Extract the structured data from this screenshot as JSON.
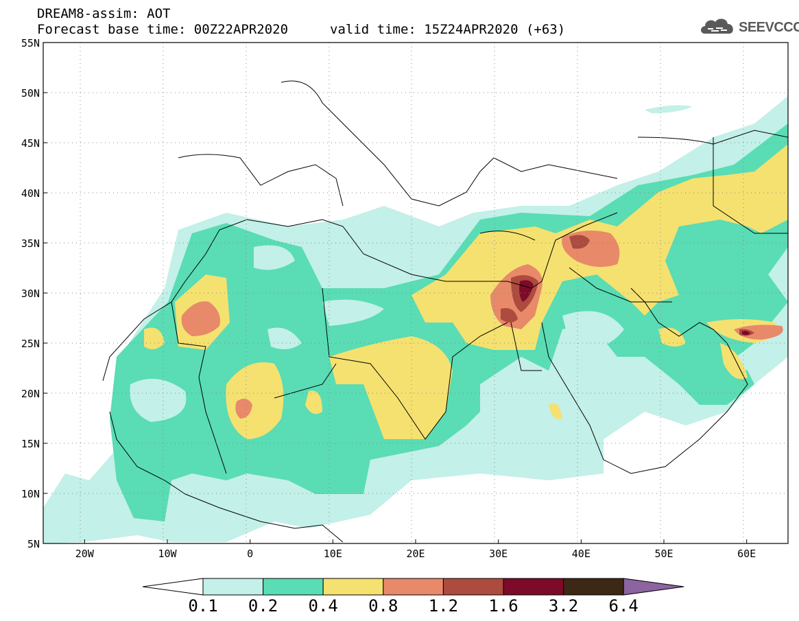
{
  "title": {
    "line1": "DREAM8-assim: AOT",
    "base_time": "Forecast base time: 00Z22APR2020",
    "valid_time": "valid time: 15Z24APR2020 (+63)"
  },
  "logo": {
    "text": "SEEVCCC",
    "icon": "cloud-icon"
  },
  "map": {
    "lon_range": [
      -25,
      65
    ],
    "lat_range": [
      5,
      55
    ],
    "lat_labels": [
      "55N",
      "50N",
      "45N",
      "40N",
      "35N",
      "30N",
      "25N",
      "20N",
      "15N",
      "10N",
      "5N"
    ],
    "lon_labels": [
      "20W",
      "10W",
      "0",
      "10E",
      "20E",
      "30E",
      "40E",
      "50E",
      "60E"
    ]
  },
  "colorbar": {
    "labels": [
      "0.1",
      "0.2",
      "0.4",
      "0.8",
      "1.2",
      "1.6",
      "3.2",
      "6.4"
    ],
    "colors": [
      "#ffffff",
      "#c3f0e8",
      "#5adcb4",
      "#f5e170",
      "#e8896a",
      "#ad4b3e",
      "#7d0a28",
      "#3c2814",
      "#8c64a0"
    ]
  }
}
